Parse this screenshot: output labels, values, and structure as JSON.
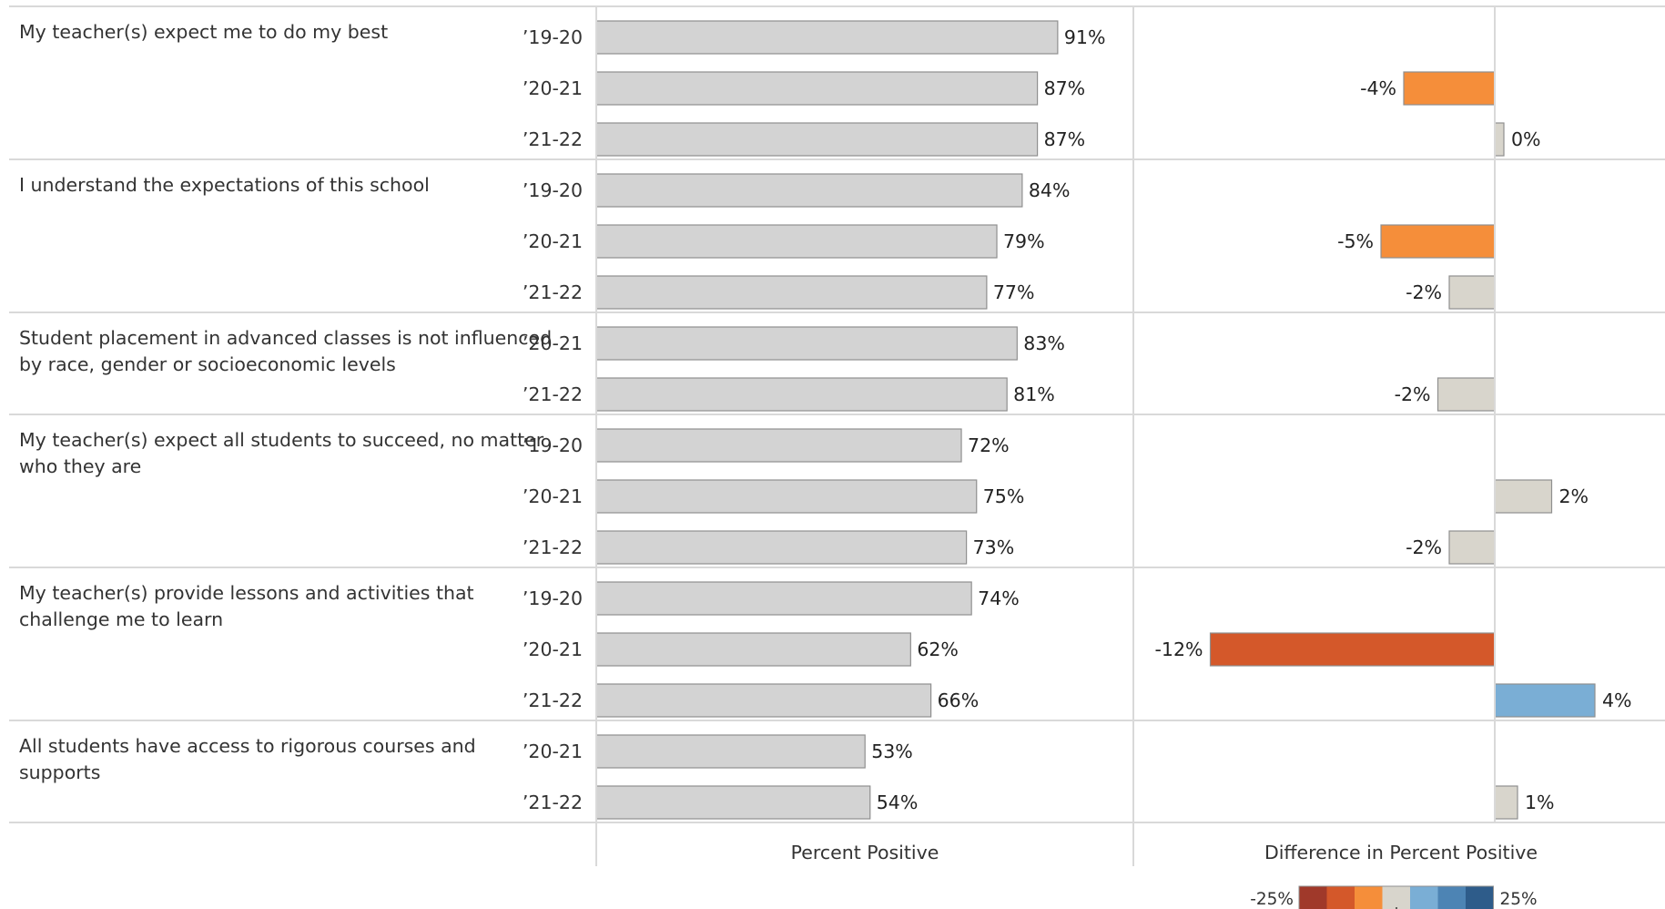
{
  "chart_data": {
    "type": "bar",
    "orientation": "horizontal",
    "panels": [
      {
        "title": "Percent Positive",
        "series": "pct"
      },
      {
        "title": "Difference in Percent Positive",
        "series": "diff"
      }
    ],
    "groups": [
      {
        "question_lines": [
          "My teacher(s) expect me to do my best"
        ],
        "rows": [
          {
            "year": "’19-20",
            "pct": 91,
            "pct_label": "91%",
            "diff": null,
            "diff_label": ""
          },
          {
            "year": "’20-21",
            "pct": 87,
            "pct_label": "87%",
            "diff": -4,
            "diff_label": "-4%"
          },
          {
            "year": "’21-22",
            "pct": 87,
            "pct_label": "87%",
            "diff": 0,
            "diff_label": "0%"
          }
        ]
      },
      {
        "question_lines": [
          "I understand the expectations of this school"
        ],
        "rows": [
          {
            "year": "’19-20",
            "pct": 84,
            "pct_label": "84%",
            "diff": null,
            "diff_label": ""
          },
          {
            "year": "’20-21",
            "pct": 79,
            "pct_label": "79%",
            "diff": -5,
            "diff_label": "-5%"
          },
          {
            "year": "’21-22",
            "pct": 77,
            "pct_label": "77%",
            "diff": -2,
            "diff_label": "-2%"
          }
        ]
      },
      {
        "question_lines": [
          "Student placement in advanced classes is not influenced",
          "by race, gender or socioeconomic levels"
        ],
        "rows": [
          {
            "year": "’20-21",
            "pct": 83,
            "pct_label": "83%",
            "diff": null,
            "diff_label": ""
          },
          {
            "year": "’21-22",
            "pct": 81,
            "pct_label": "81%",
            "diff": -2.5,
            "diff_label": "-2%"
          }
        ]
      },
      {
        "question_lines": [
          "My teacher(s) expect all students to succeed, no matter",
          "who they are"
        ],
        "rows": [
          {
            "year": "’19-20",
            "pct": 72,
            "pct_label": "72%",
            "diff": null,
            "diff_label": ""
          },
          {
            "year": "’20-21",
            "pct": 75,
            "pct_label": "75%",
            "diff": 2.5,
            "diff_label": "2%"
          },
          {
            "year": "’21-22",
            "pct": 73,
            "pct_label": "73%",
            "diff": -2,
            "diff_label": "-2%"
          }
        ]
      },
      {
        "question_lines": [
          "My teacher(s) provide lessons and activities that",
          "challenge me to learn"
        ],
        "rows": [
          {
            "year": "’19-20",
            "pct": 74,
            "pct_label": "74%",
            "diff": null,
            "diff_label": ""
          },
          {
            "year": "’20-21",
            "pct": 62,
            "pct_label": "62%",
            "diff": -12.5,
            "diff_label": "-12%"
          },
          {
            "year": "’21-22",
            "pct": 66,
            "pct_label": "66%",
            "diff": 4.4,
            "diff_label": "4%"
          }
        ]
      },
      {
        "question_lines": [
          "All students have access to rigorous courses and",
          "supports"
        ],
        "rows": [
          {
            "year": "’20-21",
            "pct": 53,
            "pct_label": "53%",
            "diff": null,
            "diff_label": ""
          },
          {
            "year": "’21-22",
            "pct": 54,
            "pct_label": "54%",
            "diff": 1,
            "diff_label": "1%"
          }
        ]
      }
    ],
    "legend": {
      "min_label": "-25%",
      "max_label": "25%",
      "min": -25,
      "max": 25,
      "colors": [
        "#A0392A",
        "#D4582A",
        "#F58E3A",
        "#D8D5CC",
        "#7AAED5",
        "#4D84B4",
        "#2E5C8A"
      ]
    },
    "colors": {
      "pct_bar": "#D3D3D3",
      "bar_stroke": "#8F8F8F",
      "neutral": "#D8D5CC",
      "orange": "#F58E3A",
      "dark_orange": "#D4582A",
      "light_blue": "#7AAED5",
      "gridline": "#D9D9D9"
    }
  }
}
